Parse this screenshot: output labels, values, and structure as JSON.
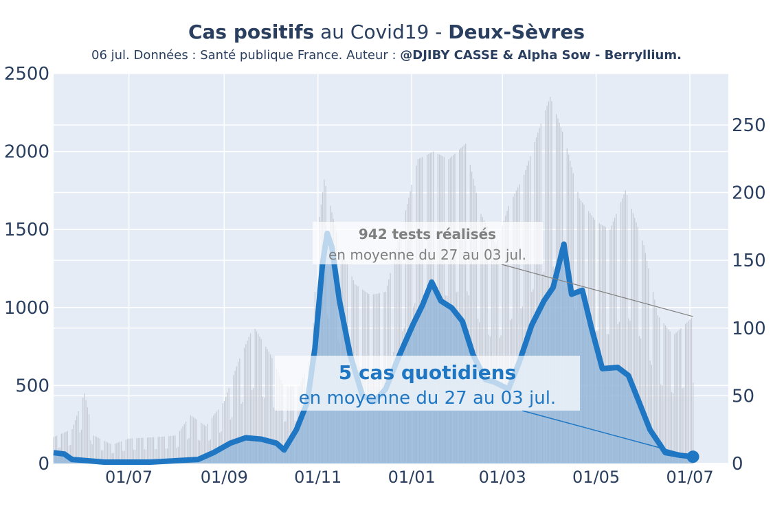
{
  "title": {
    "bold1": "Cas positifs",
    "normal": " au Covid19 - ",
    "bold2": "Deux-Sèvres"
  },
  "subtitle": {
    "normal": "06 jul. Données : Santé publique France. Auteur : ",
    "bold": "@DJIBY CASSE & Alpha Sow - Berryllium."
  },
  "annotations": {
    "tests_bold": "942 tests réalisés",
    "tests_sub": "en moyenne du 27 au 03 jul.",
    "cases_bold": "5 cas quotidiens",
    "cases_sub": "en moyenne du 27 au 03 jul."
  },
  "colors": {
    "plot_bg": "#e5ecf6",
    "cases_line": "#1f77c4",
    "cases_fill": "#8fb6d9",
    "tests_bars": "#c3c7cf",
    "text": "#2a3f5f"
  },
  "chart_data": {
    "type": "line",
    "x_unit": "date",
    "xlim": [
      "2020-05-13",
      "2021-07-26"
    ],
    "x_ticks": [
      "2020-07-01",
      "2020-09-01",
      "2020-11-01",
      "2021-01-01",
      "2021-03-01",
      "2021-05-01",
      "2021-07-01"
    ],
    "x_tick_labels": [
      "01/07",
      "01/09",
      "01/11",
      "01/01",
      "01/03",
      "01/05",
      "01/07"
    ],
    "y_left": {
      "ylim": [
        0,
        2500
      ],
      "ticks": [
        0,
        500,
        1000,
        1500,
        2000,
        2500
      ]
    },
    "y_right": {
      "ylim": [
        0,
        288
      ],
      "ticks": [
        0,
        50,
        100,
        150,
        200,
        250
      ]
    },
    "series": [
      {
        "kind": "bars",
        "axis": "left",
        "points": [
          [
            "2020-05-13",
            170
          ],
          [
            "2020-05-25",
            220
          ],
          [
            "2020-06-02",
            450
          ],
          [
            "2020-06-08",
            180
          ],
          [
            "2020-06-20",
            120
          ],
          [
            "2020-07-01",
            160
          ],
          [
            "2020-07-20",
            170
          ],
          [
            "2020-08-01",
            180
          ],
          [
            "2020-08-10",
            310
          ],
          [
            "2020-08-20",
            240
          ],
          [
            "2020-09-01",
            400
          ],
          [
            "2020-09-10",
            650
          ],
          [
            "2020-09-20",
            880
          ],
          [
            "2020-10-01",
            700
          ],
          [
            "2020-10-10",
            490
          ],
          [
            "2020-10-20",
            500
          ],
          [
            "2020-10-28",
            700
          ],
          [
            "2020-11-01",
            1500
          ],
          [
            "2020-11-05",
            1820
          ],
          [
            "2020-11-15",
            1400
          ],
          [
            "2020-11-25",
            1150
          ],
          [
            "2020-12-05",
            1080
          ],
          [
            "2020-12-15",
            1100
          ],
          [
            "2020-12-25",
            1500
          ],
          [
            "2021-01-05",
            1950
          ],
          [
            "2021-01-15",
            2000
          ],
          [
            "2021-01-25",
            1950
          ],
          [
            "2021-02-05",
            2050
          ],
          [
            "2021-02-15",
            1600
          ],
          [
            "2021-02-25",
            1400
          ],
          [
            "2021-03-05",
            1650
          ],
          [
            "2021-03-15",
            1850
          ],
          [
            "2021-03-25",
            2150
          ],
          [
            "2021-04-01",
            2350
          ],
          [
            "2021-04-10",
            2100
          ],
          [
            "2021-04-20",
            1700
          ],
          [
            "2021-05-01",
            1550
          ],
          [
            "2021-05-10",
            1500
          ],
          [
            "2021-05-20",
            1750
          ],
          [
            "2021-06-01",
            1400
          ],
          [
            "2021-06-10",
            950
          ],
          [
            "2021-06-20",
            820
          ],
          [
            "2021-07-03",
            942
          ]
        ]
      },
      {
        "kind": "line",
        "axis": "right",
        "points": [
          [
            "2020-05-13",
            8
          ],
          [
            "2020-05-20",
            7
          ],
          [
            "2020-05-25",
            3
          ],
          [
            "2020-06-05",
            2
          ],
          [
            "2020-06-15",
            1
          ],
          [
            "2020-07-15",
            1
          ],
          [
            "2020-08-15",
            3
          ],
          [
            "2020-08-25",
            8
          ],
          [
            "2020-09-05",
            15
          ],
          [
            "2020-09-15",
            19
          ],
          [
            "2020-09-25",
            18
          ],
          [
            "2020-10-05",
            15
          ],
          [
            "2020-10-10",
            10
          ],
          [
            "2020-10-18",
            25
          ],
          [
            "2020-10-25",
            45
          ],
          [
            "2020-10-30",
            85
          ],
          [
            "2020-11-04",
            148
          ],
          [
            "2020-11-07",
            170
          ],
          [
            "2020-11-10",
            160
          ],
          [
            "2020-11-15",
            120
          ],
          [
            "2020-11-22",
            80
          ],
          [
            "2020-11-30",
            50
          ],
          [
            "2020-12-08",
            46
          ],
          [
            "2020-12-15",
            55
          ],
          [
            "2020-12-24",
            80
          ],
          [
            "2021-01-02",
            103
          ],
          [
            "2021-01-08",
            117
          ],
          [
            "2021-01-14",
            134
          ],
          [
            "2021-01-20",
            120
          ],
          [
            "2021-01-27",
            115
          ],
          [
            "2021-02-03",
            105
          ],
          [
            "2021-02-10",
            80
          ],
          [
            "2021-02-18",
            62
          ],
          [
            "2021-02-24",
            60
          ],
          [
            "2021-03-05",
            55
          ],
          [
            "2021-03-12",
            75
          ],
          [
            "2021-03-20",
            102
          ],
          [
            "2021-03-28",
            120
          ],
          [
            "2021-04-03",
            130
          ],
          [
            "2021-04-10",
            162
          ],
          [
            "2021-04-15",
            125
          ],
          [
            "2021-04-22",
            128
          ],
          [
            "2021-04-28",
            100
          ],
          [
            "2021-05-05",
            70
          ],
          [
            "2021-05-15",
            71
          ],
          [
            "2021-05-22",
            65
          ],
          [
            "2021-05-28",
            48
          ],
          [
            "2021-06-05",
            25
          ],
          [
            "2021-06-15",
            8
          ],
          [
            "2021-06-25",
            6
          ],
          [
            "2021-07-03",
            5
          ]
        ]
      }
    ]
  }
}
